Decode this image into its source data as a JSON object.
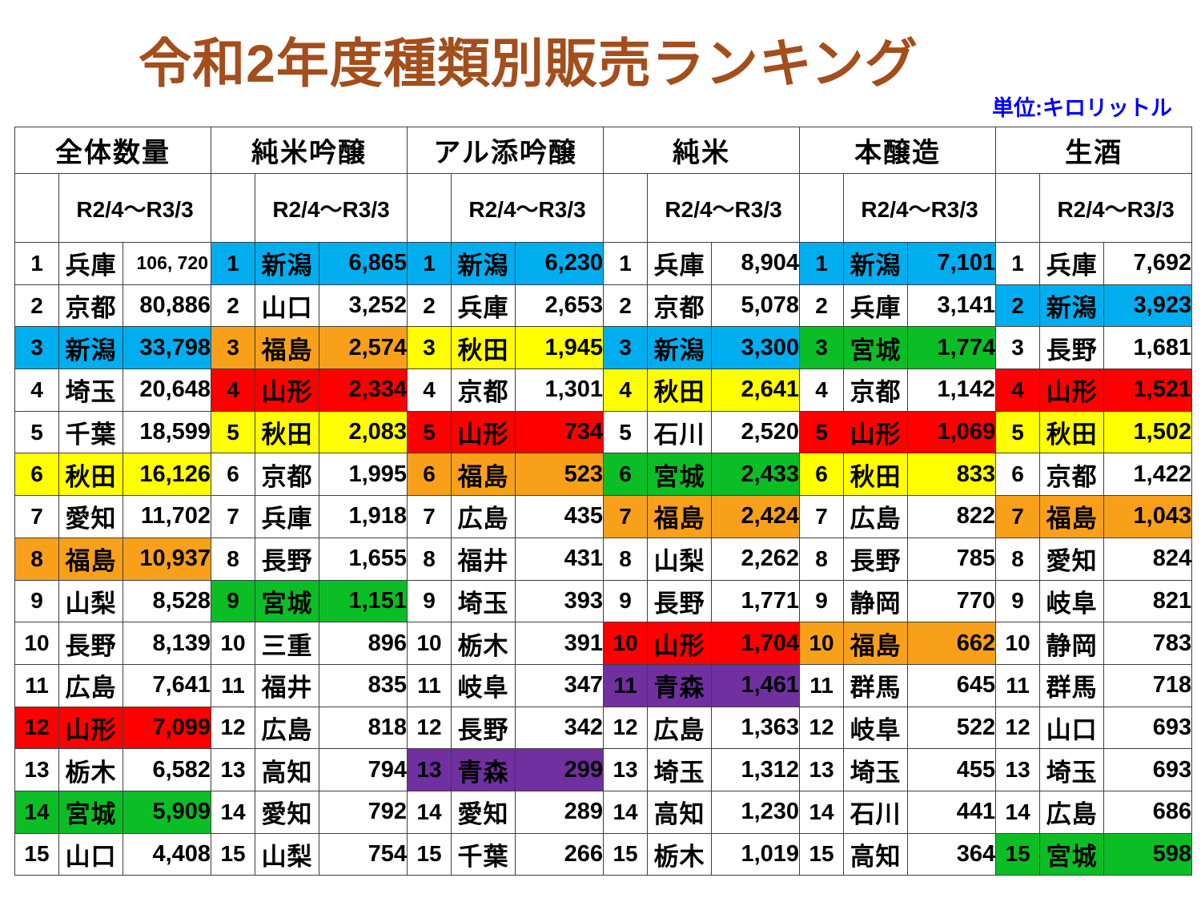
{
  "title": "令和2年度種類別販売ランキング",
  "unit_label": "単位:キロリットル",
  "period_label": "R2/4～R3/3",
  "colors": {
    "title": "#A34E1C",
    "unit": "#0000FF",
    "grid": "#3f3f3f"
  },
  "palette": {
    "blue": "#00AEEF",
    "red": "#FF0000",
    "yellow": "#FFFF00",
    "orange": "#F9A01B",
    "green": "#0CBE26",
    "purple": "#7030A0"
  },
  "highlight_by_prefecture": {
    "新潟": "blue",
    "山形": "red",
    "秋田": "yellow",
    "福島": "orange",
    "宮城": "green",
    "青森": "purple"
  },
  "groups": [
    {
      "id": "total",
      "name": "全体数量",
      "rows": [
        {
          "rank": "1",
          "pref": "兵庫",
          "value": "106, 720"
        },
        {
          "rank": "2",
          "pref": "京都",
          "value": "80,886"
        },
        {
          "rank": "3",
          "pref": "新潟",
          "value": "33,798"
        },
        {
          "rank": "4",
          "pref": "埼玉",
          "value": "20,648"
        },
        {
          "rank": "5",
          "pref": "千葉",
          "value": "18,599"
        },
        {
          "rank": "6",
          "pref": "秋田",
          "value": "16,126"
        },
        {
          "rank": "7",
          "pref": "愛知",
          "value": "11,702"
        },
        {
          "rank": "8",
          "pref": "福島",
          "value": "10,937"
        },
        {
          "rank": "9",
          "pref": "山梨",
          "value": "8,528"
        },
        {
          "rank": "10",
          "pref": "長野",
          "value": "8,139"
        },
        {
          "rank": "11",
          "pref": "広島",
          "value": "7,641"
        },
        {
          "rank": "12",
          "pref": "山形",
          "value": "7,099"
        },
        {
          "rank": "13",
          "pref": "栃木",
          "value": "6,582"
        },
        {
          "rank": "14",
          "pref": "宮城",
          "value": "5,909"
        },
        {
          "rank": "15",
          "pref": "山口",
          "value": "4,408"
        }
      ]
    },
    {
      "id": "junmai-ginjo",
      "name": "純米吟醸",
      "rows": [
        {
          "rank": "1",
          "pref": "新潟",
          "value": "6,865"
        },
        {
          "rank": "2",
          "pref": "山口",
          "value": "3,252"
        },
        {
          "rank": "3",
          "pref": "福島",
          "value": "2,574"
        },
        {
          "rank": "4",
          "pref": "山形",
          "value": "2,334"
        },
        {
          "rank": "5",
          "pref": "秋田",
          "value": "2,083"
        },
        {
          "rank": "6",
          "pref": "京都",
          "value": "1,995"
        },
        {
          "rank": "7",
          "pref": "兵庫",
          "value": "1,918"
        },
        {
          "rank": "8",
          "pref": "長野",
          "value": "1,655"
        },
        {
          "rank": "9",
          "pref": "宮城",
          "value": "1,151"
        },
        {
          "rank": "10",
          "pref": "三重",
          "value": "896"
        },
        {
          "rank": "11",
          "pref": "福井",
          "value": "835"
        },
        {
          "rank": "12",
          "pref": "広島",
          "value": "818"
        },
        {
          "rank": "13",
          "pref": "高知",
          "value": "794"
        },
        {
          "rank": "14",
          "pref": "愛知",
          "value": "792"
        },
        {
          "rank": "15",
          "pref": "山梨",
          "value": "754"
        }
      ]
    },
    {
      "id": "aruten-ginjo",
      "name": "アル添吟醸",
      "rows": [
        {
          "rank": "1",
          "pref": "新潟",
          "value": "6,230"
        },
        {
          "rank": "2",
          "pref": "兵庫",
          "value": "2,653"
        },
        {
          "rank": "3",
          "pref": "秋田",
          "value": "1,945"
        },
        {
          "rank": "4",
          "pref": "京都",
          "value": "1,301"
        },
        {
          "rank": "5",
          "pref": "山形",
          "value": "734"
        },
        {
          "rank": "6",
          "pref": "福島",
          "value": "523"
        },
        {
          "rank": "7",
          "pref": "広島",
          "value": "435"
        },
        {
          "rank": "8",
          "pref": "福井",
          "value": "431"
        },
        {
          "rank": "9",
          "pref": "埼玉",
          "value": "393"
        },
        {
          "rank": "10",
          "pref": "栃木",
          "value": "391"
        },
        {
          "rank": "11",
          "pref": "岐阜",
          "value": "347"
        },
        {
          "rank": "12",
          "pref": "長野",
          "value": "342"
        },
        {
          "rank": "13",
          "pref": "青森",
          "value": "299"
        },
        {
          "rank": "14",
          "pref": "愛知",
          "value": "289"
        },
        {
          "rank": "15",
          "pref": "千葉",
          "value": "266"
        }
      ]
    },
    {
      "id": "junmai",
      "name": "純米",
      "rows": [
        {
          "rank": "1",
          "pref": "兵庫",
          "value": "8,904"
        },
        {
          "rank": "2",
          "pref": "京都",
          "value": "5,078"
        },
        {
          "rank": "3",
          "pref": "新潟",
          "value": "3,300"
        },
        {
          "rank": "4",
          "pref": "秋田",
          "value": "2,641"
        },
        {
          "rank": "5",
          "pref": "石川",
          "value": "2,520"
        },
        {
          "rank": "6",
          "pref": "宮城",
          "value": "2,433"
        },
        {
          "rank": "7",
          "pref": "福島",
          "value": "2,424"
        },
        {
          "rank": "8",
          "pref": "山梨",
          "value": "2,262"
        },
        {
          "rank": "9",
          "pref": "長野",
          "value": "1,771"
        },
        {
          "rank": "10",
          "pref": "山形",
          "value": "1,704"
        },
        {
          "rank": "11",
          "pref": "青森",
          "value": "1,461"
        },
        {
          "rank": "12",
          "pref": "広島",
          "value": "1,363"
        },
        {
          "rank": "13",
          "pref": "埼玉",
          "value": "1,312"
        },
        {
          "rank": "14",
          "pref": "高知",
          "value": "1,230"
        },
        {
          "rank": "15",
          "pref": "栃木",
          "value": "1,019"
        }
      ]
    },
    {
      "id": "honjozo",
      "name": "本醸造",
      "rows": [
        {
          "rank": "1",
          "pref": "新潟",
          "value": "7,101"
        },
        {
          "rank": "2",
          "pref": "兵庫",
          "value": "3,141"
        },
        {
          "rank": "3",
          "pref": "宮城",
          "value": "1,774"
        },
        {
          "rank": "4",
          "pref": "京都",
          "value": "1,142"
        },
        {
          "rank": "5",
          "pref": "山形",
          "value": "1,069"
        },
        {
          "rank": "6",
          "pref": "秋田",
          "value": "833"
        },
        {
          "rank": "7",
          "pref": "広島",
          "value": "822"
        },
        {
          "rank": "8",
          "pref": "長野",
          "value": "785"
        },
        {
          "rank": "9",
          "pref": "静岡",
          "value": "770"
        },
        {
          "rank": "10",
          "pref": "福島",
          "value": "662"
        },
        {
          "rank": "11",
          "pref": "群馬",
          "value": "645"
        },
        {
          "rank": "12",
          "pref": "岐阜",
          "value": "522"
        },
        {
          "rank": "13",
          "pref": "埼玉",
          "value": "455"
        },
        {
          "rank": "14",
          "pref": "石川",
          "value": "441"
        },
        {
          "rank": "15",
          "pref": "高知",
          "value": "364"
        }
      ]
    },
    {
      "id": "namazake",
      "name": "生酒",
      "rows": [
        {
          "rank": "1",
          "pref": "兵庫",
          "value": "7,692"
        },
        {
          "rank": "2",
          "pref": "新潟",
          "value": "3,923"
        },
        {
          "rank": "3",
          "pref": "長野",
          "value": "1,681"
        },
        {
          "rank": "4",
          "pref": "山形",
          "value": "1,521"
        },
        {
          "rank": "5",
          "pref": "秋田",
          "value": "1,502"
        },
        {
          "rank": "6",
          "pref": "京都",
          "value": "1,422"
        },
        {
          "rank": "7",
          "pref": "福島",
          "value": "1,043"
        },
        {
          "rank": "8",
          "pref": "愛知",
          "value": "824"
        },
        {
          "rank": "9",
          "pref": "岐阜",
          "value": "821"
        },
        {
          "rank": "10",
          "pref": "静岡",
          "value": "783"
        },
        {
          "rank": "11",
          "pref": "群馬",
          "value": "718"
        },
        {
          "rank": "12",
          "pref": "山口",
          "value": "693"
        },
        {
          "rank": "13",
          "pref": "埼玉",
          "value": "693"
        },
        {
          "rank": "14",
          "pref": "広島",
          "value": "686"
        },
        {
          "rank": "15",
          "pref": "宮城",
          "value": "598"
        }
      ]
    }
  ]
}
